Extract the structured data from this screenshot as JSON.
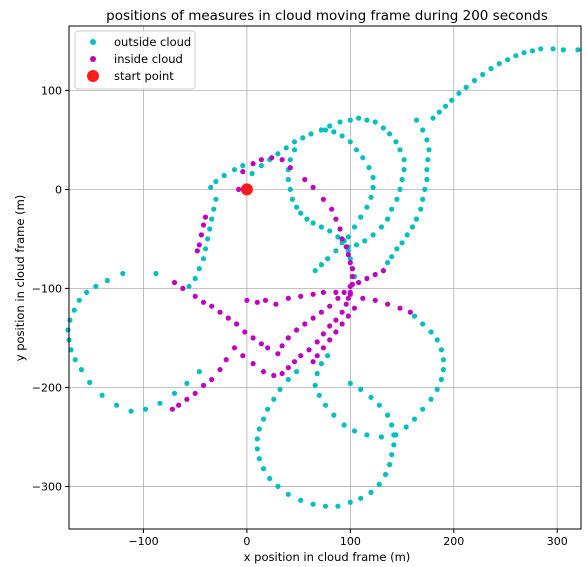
{
  "chart_data": {
    "type": "scatter",
    "title": "positions of measures in cloud moving frame during 200 seconds",
    "xlabel": "x position in cloud frame (m)",
    "ylabel": "y position in cloud frame (m)",
    "xlim": [
      -172,
      323
    ],
    "ylim": [
      -343,
      165
    ],
    "xticks": [
      -100,
      0,
      100,
      200,
      300
    ],
    "yticks": [
      -300,
      -200,
      -100,
      0,
      100
    ],
    "xtick_labels": [
      "−100",
      "0",
      "100",
      "200",
      "300"
    ],
    "ytick_labels": [
      "−300",
      "−200",
      "−100",
      "0",
      "100"
    ],
    "grid": true,
    "legend_position": "top-left",
    "series": [
      {
        "name": "outside cloud",
        "color": "#00bfbf",
        "marker": "dot",
        "points": [
          [
            -35,
            2
          ],
          [
            -30,
            8
          ],
          [
            -22,
            14
          ],
          [
            -12,
            20
          ],
          [
            -4,
            24
          ],
          [
            5,
            16
          ],
          [
            14,
            24
          ],
          [
            22,
            30
          ],
          [
            30,
            36
          ],
          [
            38,
            42
          ],
          [
            46,
            48
          ],
          [
            54,
            52
          ],
          [
            62,
            56
          ],
          [
            72,
            60
          ],
          [
            80,
            64
          ],
          [
            90,
            68
          ],
          [
            100,
            70
          ],
          [
            180,
            72
          ],
          [
            186,
            78
          ],
          [
            192,
            84
          ],
          [
            198,
            90
          ],
          [
            205,
            97
          ],
          [
            212,
            103
          ],
          [
            220,
            110
          ],
          [
            228,
            116
          ],
          [
            236,
            122
          ],
          [
            244,
            127
          ],
          [
            252,
            131
          ],
          [
            260,
            135
          ],
          [
            268,
            138
          ],
          [
            276,
            140
          ],
          [
            284,
            142
          ],
          [
            296,
            142
          ],
          [
            306,
            141
          ],
          [
            320,
            141
          ],
          [
            164,
            70
          ],
          [
            170,
            60
          ],
          [
            174,
            50
          ],
          [
            176,
            40
          ],
          [
            175,
            30
          ],
          [
            174,
            20
          ],
          [
            174,
            10
          ],
          [
            172,
            0
          ],
          [
            170,
            -10
          ],
          [
            168,
            -20
          ],
          [
            164,
            -30
          ],
          [
            160,
            -38
          ],
          [
            155,
            -46
          ],
          [
            150,
            -54
          ],
          [
            145,
            -60
          ],
          [
            140,
            -68
          ],
          [
            136,
            -74
          ],
          [
            108,
            72
          ],
          [
            116,
            70
          ],
          [
            124,
            68
          ],
          [
            132,
            62
          ],
          [
            138,
            56
          ],
          [
            144,
            48
          ],
          [
            148,
            40
          ],
          [
            152,
            30
          ],
          [
            152,
            20
          ],
          [
            150,
            10
          ],
          [
            148,
            0
          ],
          [
            145,
            -10
          ],
          [
            140,
            -20
          ],
          [
            136,
            -30
          ],
          [
            130,
            -38
          ],
          [
            122,
            -46
          ],
          [
            114,
            -52
          ],
          [
            106,
            -56
          ],
          [
            98,
            -58
          ],
          [
            76,
            60
          ],
          [
            84,
            58
          ],
          [
            92,
            54
          ],
          [
            100,
            48
          ],
          [
            106,
            40
          ],
          [
            112,
            32
          ],
          [
            118,
            22
          ],
          [
            122,
            12
          ],
          [
            122,
            2
          ],
          [
            120,
            -8
          ],
          [
            116,
            -18
          ],
          [
            110,
            -28
          ],
          [
            104,
            -38
          ],
          [
            98,
            -48
          ],
          [
            92,
            -54
          ],
          [
            86,
            -62
          ],
          [
            78,
            -70
          ],
          [
            72,
            -76
          ],
          [
            66,
            -82
          ],
          [
            46,
            40
          ],
          [
            42,
            30
          ],
          [
            40,
            20
          ],
          [
            40,
            10
          ],
          [
            42,
            0
          ],
          [
            44,
            -10
          ],
          [
            48,
            -18
          ],
          [
            52,
            -24
          ],
          [
            58,
            -30
          ],
          [
            64,
            -34
          ],
          [
            72,
            -38
          ],
          [
            80,
            -42
          ],
          [
            88,
            -48
          ],
          [
            94,
            -52
          ],
          [
            98,
            -62
          ],
          [
            100,
            -70
          ],
          [
            102,
            -80
          ],
          [
            104,
            -88
          ],
          [
            -30,
            -10
          ],
          [
            -32,
            -20
          ],
          [
            -34,
            -30
          ],
          [
            -36,
            -40
          ],
          [
            -38,
            -50
          ],
          [
            -40,
            -60
          ],
          [
            -42,
            -70
          ],
          [
            -46,
            -80
          ],
          [
            -50,
            -90
          ],
          [
            -56,
            -98
          ],
          [
            -88,
            -85
          ],
          [
            -120,
            -85
          ],
          [
            -135,
            -92
          ],
          [
            -146,
            -98
          ],
          [
            -155,
            -104
          ],
          [
            -162,
            -112
          ],
          [
            -167,
            -122
          ],
          [
            -171,
            -132
          ],
          [
            -173,
            -142
          ],
          [
            -172,
            -152
          ],
          [
            -170,
            -162
          ],
          [
            -166,
            -172
          ],
          [
            -160,
            -182
          ],
          [
            -152,
            -195
          ],
          [
            -140,
            -208
          ],
          [
            -126,
            -218
          ],
          [
            -112,
            -224
          ],
          [
            -98,
            -222
          ],
          [
            -84,
            -216
          ],
          [
            -70,
            -206
          ],
          [
            -58,
            -196
          ],
          [
            -46,
            -184
          ],
          [
            162,
            -128
          ],
          [
            170,
            -136
          ],
          [
            178,
            -144
          ],
          [
            184,
            -152
          ],
          [
            188,
            -162
          ],
          [
            190,
            -172
          ],
          [
            190,
            -182
          ],
          [
            188,
            -192
          ],
          [
            184,
            -202
          ],
          [
            178,
            -212
          ],
          [
            170,
            -222
          ],
          [
            162,
            -232
          ],
          [
            154,
            -240
          ],
          [
            144,
            -248
          ],
          [
            130,
            -250
          ],
          [
            116,
            -248
          ],
          [
            104,
            -244
          ],
          [
            94,
            -238
          ],
          [
            84,
            -228
          ],
          [
            76,
            -218
          ],
          [
            70,
            -208
          ],
          [
            66,
            -198
          ],
          [
            68,
            -186
          ],
          [
            72,
            -176
          ],
          [
            78,
            -168
          ],
          [
            100,
            -196
          ],
          [
            110,
            -202
          ],
          [
            120,
            -210
          ],
          [
            128,
            -218
          ],
          [
            136,
            -228
          ],
          [
            140,
            -238
          ],
          [
            142,
            -248
          ],
          [
            142,
            -258
          ],
          [
            140,
            -268
          ],
          [
            138,
            -278
          ],
          [
            134,
            -288
          ],
          [
            128,
            -298
          ],
          [
            120,
            -306
          ],
          [
            110,
            -312
          ],
          [
            100,
            -316
          ],
          [
            88,
            -320
          ],
          [
            76,
            -320
          ],
          [
            64,
            -318
          ],
          [
            52,
            -314
          ],
          [
            40,
            -308
          ],
          [
            30,
            -300
          ],
          [
            22,
            -292
          ],
          [
            16,
            -282
          ],
          [
            12,
            -272
          ],
          [
            10,
            -262
          ],
          [
            10,
            -252
          ],
          [
            12,
            -242
          ],
          [
            16,
            -232
          ],
          [
            20,
            -222
          ],
          [
            26,
            -212
          ],
          [
            32,
            -202
          ],
          [
            40,
            -192
          ],
          [
            48,
            -184
          ]
        ]
      },
      {
        "name": "inside cloud",
        "color": "#bf00bf",
        "marker": "dot",
        "points": [
          [
            -8,
            0
          ],
          [
            -4,
            18
          ],
          [
            6,
            26
          ],
          [
            14,
            30
          ],
          [
            24,
            32
          ],
          [
            34,
            30
          ],
          [
            42,
            22
          ],
          [
            56,
            10
          ],
          [
            64,
            2
          ],
          [
            74,
            -10
          ],
          [
            82,
            -20
          ],
          [
            86,
            -30
          ],
          [
            90,
            -40
          ],
          [
            92,
            -50
          ],
          [
            96,
            -58
          ],
          [
            98,
            -66
          ],
          [
            100,
            -74
          ],
          [
            102,
            -80
          ],
          [
            102,
            -88
          ],
          [
            102,
            -96
          ],
          [
            100,
            -104
          ],
          [
            98,
            -110
          ],
          [
            96,
            -116
          ],
          [
            92,
            -124
          ],
          [
            86,
            -132
          ],
          [
            80,
            -138
          ],
          [
            74,
            -146
          ],
          [
            68,
            -154
          ],
          [
            60,
            -162
          ],
          [
            52,
            -168
          ],
          [
            46,
            -174
          ],
          [
            40,
            -180
          ],
          [
            34,
            -186
          ],
          [
            26,
            -188
          ],
          [
            16,
            -184
          ],
          [
            6,
            -176
          ],
          [
            -4,
            -168
          ],
          [
            -12,
            -160
          ],
          [
            -20,
            -172
          ],
          [
            -26,
            -182
          ],
          [
            -34,
            -192
          ],
          [
            -42,
            -198
          ],
          [
            -50,
            -206
          ],
          [
            -58,
            -212
          ],
          [
            -66,
            -218
          ],
          [
            -72,
            -222
          ],
          [
            -40,
            -28
          ],
          [
            -42,
            -36
          ],
          [
            -44,
            -46
          ],
          [
            -46,
            -56
          ],
          [
            -48,
            -62
          ],
          [
            -70,
            -94
          ],
          [
            -62,
            -100
          ],
          [
            -50,
            -108
          ],
          [
            -42,
            -114
          ],
          [
            -34,
            -118
          ],
          [
            -26,
            -124
          ],
          [
            -18,
            -130
          ],
          [
            -10,
            -136
          ],
          [
            -2,
            -144
          ],
          [
            6,
            -150
          ],
          [
            14,
            -156
          ],
          [
            20,
            -160
          ],
          [
            0,
            -112
          ],
          [
            10,
            -114
          ],
          [
            18,
            -112
          ],
          [
            28,
            -116
          ],
          [
            40,
            -110
          ],
          [
            52,
            -108
          ],
          [
            64,
            -106
          ],
          [
            74,
            -104
          ],
          [
            86,
            -104
          ],
          [
            100,
            -106
          ],
          [
            112,
            -110
          ],
          [
            124,
            -112
          ],
          [
            136,
            -116
          ],
          [
            148,
            -120
          ],
          [
            158,
            -124
          ],
          [
            132,
            -82
          ],
          [
            124,
            -86
          ],
          [
            116,
            -90
          ],
          [
            108,
            -94
          ],
          [
            100,
            -98
          ],
          [
            94,
            -104
          ],
          [
            88,
            -110
          ],
          [
            80,
            -118
          ],
          [
            72,
            -124
          ],
          [
            64,
            -130
          ],
          [
            56,
            -136
          ],
          [
            48,
            -142
          ],
          [
            40,
            -150
          ],
          [
            34,
            -158
          ],
          [
            30,
            -166
          ],
          [
            104,
            -120
          ],
          [
            98,
            -128
          ],
          [
            92,
            -136
          ],
          [
            86,
            -144
          ],
          [
            80,
            -152
          ],
          [
            74,
            -160
          ],
          [
            68,
            -168
          ],
          [
            64,
            -174
          ]
        ]
      },
      {
        "name": "start point",
        "color": "#ff1a1a",
        "marker": "large-dot",
        "points": [
          [
            0,
            0
          ]
        ]
      }
    ]
  }
}
